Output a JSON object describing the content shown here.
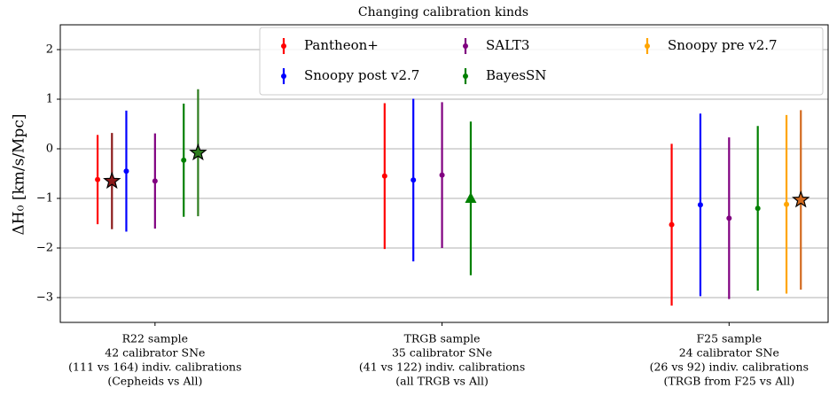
{
  "chart_data": {
    "type": "errorbar",
    "title": "Changing calibration kinds",
    "ylabel": "ΔH₀ [km/s/Mpc]",
    "xlim": [
      -3.3,
      23.45
    ],
    "ylim": [
      -3.5,
      2.5
    ],
    "yticks": [
      {
        "value": -3,
        "label": "−3"
      },
      {
        "value": -2,
        "label": "−2"
      },
      {
        "value": -1,
        "label": "−1"
      },
      0,
      1,
      2
    ],
    "xticks": [
      {
        "value": 0,
        "label": [
          "R22 sample",
          "42 calibrator SNe",
          "(111 vs 164) indiv. calibrations",
          "(Cepheids vs All)"
        ]
      },
      {
        "value": 10,
        "label": [
          "TRGB sample",
          "35 calibrator SNe",
          "(41 vs 122) indiv. calibrations",
          "(all TRGB vs All)"
        ]
      },
      {
        "value": 20,
        "label": [
          "F25 sample",
          "24 calibrator SNe",
          "(26 vs 92) indiv. calibrations",
          "(TRGB from F25 vs All)"
        ]
      }
    ],
    "grid": true,
    "legend": "upper right",
    "series": [
      {
        "name": "Pantheon+",
        "color": "#ff0000",
        "x": [
          -2,
          8,
          18
        ],
        "values": [
          -0.62,
          -0.55,
          -1.53
        ],
        "errors": [
          0.9,
          1.47,
          1.63
        ]
      },
      {
        "name": "Snoopy post v2.7",
        "color": "#0000ff",
        "x": [
          -1,
          9,
          19
        ],
        "values": [
          -0.45,
          -0.63,
          -1.13
        ],
        "errors": [
          1.22,
          1.64,
          1.84
        ]
      },
      {
        "name": "SALT3",
        "color": "#800080",
        "x": [
          0,
          10,
          20
        ],
        "values": [
          -0.65,
          -0.53,
          -1.4
        ],
        "errors": [
          0.96,
          1.47,
          1.63
        ]
      },
      {
        "name": "BayesSN",
        "color": "#008000",
        "x": [
          1,
          21
        ],
        "values": [
          -0.23,
          -1.2
        ],
        "errors": [
          1.14,
          1.66
        ]
      },
      {
        "name": "Snoopy pre v2.7",
        "color": "#ffa500",
        "x": [
          22
        ],
        "values": [
          -1.12
        ],
        "errors": [
          1.8
        ]
      },
      {
        "color": "#8b1a1a",
        "marker": "star",
        "x": [
          -1.5
        ],
        "values": [
          -0.65
        ],
        "errors": [
          0.97
        ]
      },
      {
        "color": "#2e7d1f",
        "marker": "star",
        "x": [
          1.5
        ],
        "values": [
          -0.08
        ],
        "errors": [
          1.28
        ]
      },
      {
        "color": "#008000",
        "marker": "triangle",
        "x": [
          11
        ],
        "values": [
          -1.0
        ],
        "errors": [
          1.55
        ]
      },
      {
        "color": "#d2691e",
        "marker": "star",
        "x": [
          22.5
        ],
        "values": [
          -1.03
        ],
        "errors": [
          1.81
        ]
      }
    ]
  }
}
